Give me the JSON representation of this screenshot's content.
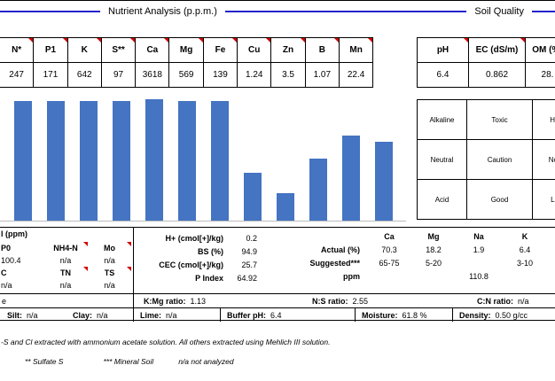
{
  "titles": {
    "nutrient": "Nutrient Analysis (p.p.m.)",
    "soil_quality": "Soil Quality"
  },
  "accent_colors": {
    "bar_blue": "#4474c2",
    "divider_blue": "#2323cd",
    "note_red": "#d40000"
  },
  "nutrients": {
    "headers": [
      "N*",
      "P1",
      "K",
      "S**",
      "Ca",
      "Mg",
      "Fe",
      "Cu",
      "Zn",
      "B",
      "Mn"
    ],
    "values": [
      "247",
      "171",
      "642",
      "97",
      "3618",
      "569",
      "139",
      "1.24",
      "3.5",
      "1.07",
      "22.4"
    ]
  },
  "quality": {
    "headers": [
      "pH",
      "EC (dS/m)",
      "OM (%)"
    ],
    "values": [
      "6.4",
      "0.862",
      "28."
    ],
    "grid": [
      [
        "Alkaline",
        "Toxic",
        "High"
      ],
      [
        "Neutral",
        "Caution",
        "Norm"
      ],
      [
        "Acid",
        "Good",
        "Low"
      ]
    ]
  },
  "chart_data": {
    "type": "bar",
    "title": "",
    "categories": [],
    "values_pct": [
      96,
      96,
      96,
      96,
      97,
      96,
      96,
      38,
      22,
      50,
      68,
      63
    ],
    "ylim": [
      0,
      100
    ],
    "note": "category and axis labels are cropped out of frame; bar heights estimated as percent of visible plot height"
  },
  "extras": {
    "title": "l (ppm)",
    "row1_headers": [
      "P0",
      "NH4-N",
      "Mo"
    ],
    "row1_values": [
      "100.4",
      "n/a",
      "n/a"
    ],
    "row2_headers": [
      "C",
      "TN",
      "TS"
    ],
    "row2_values": [
      "n/a",
      "n/a",
      "n/a"
    ]
  },
  "texture": {
    "fragment": "e",
    "silt_label": "Silt:",
    "silt_value": "n/a",
    "clay_label": "Clay:",
    "clay_value": "n/a"
  },
  "cec": [
    {
      "label": "H+ (cmol[+]/kg)",
      "value": "0.2"
    },
    {
      "label": "BS (%)",
      "value": "94.9"
    },
    {
      "label": "CEC (cmol[+]/kg)",
      "value": "25.7"
    },
    {
      "label": "P Index",
      "value": "64.92"
    }
  ],
  "saturation": {
    "columns": [
      "Ca",
      "Mg",
      "Na",
      "K"
    ],
    "rows": [
      {
        "label": "Actual (%)",
        "values": [
          "70.3",
          "18.2",
          "1.9",
          "6.4"
        ]
      },
      {
        "label": "Suggested***",
        "values": [
          "65-75",
          "5-20",
          "",
          "3-10"
        ]
      },
      {
        "label": "ppm",
        "values": [
          "",
          "",
          "110.8",
          ""
        ]
      }
    ]
  },
  "ratios": [
    {
      "label": "K:Mg ratio:",
      "value": "1.13"
    },
    {
      "label": "N:S ratio:",
      "value": "2.55"
    },
    {
      "label": "C:N ratio:",
      "value": "n/a"
    }
  ],
  "misc": [
    {
      "label": "Lime:",
      "value": "n/a"
    },
    {
      "label": "Buffer pH:",
      "value": "6.4"
    },
    {
      "label": "Moisture:",
      "value": "61.8 %"
    },
    {
      "label": "Density:",
      "value": "0.50 g/cc"
    }
  ],
  "footnotes": {
    "line1": "-S and Cl extracted with ammonium acetate solution. All others extracted using Mehlich III solution.",
    "items": [
      "** Sulfate S",
      "*** Mineral Soil",
      "n/a not analyzed"
    ]
  }
}
